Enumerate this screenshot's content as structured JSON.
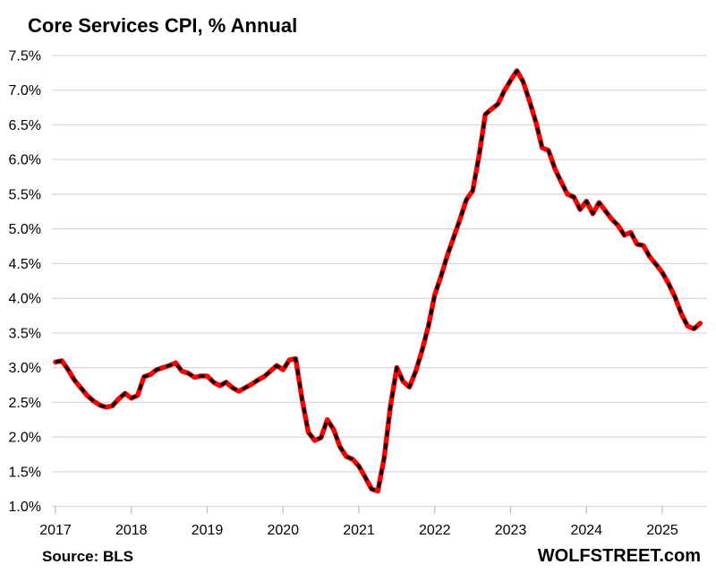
{
  "header": {
    "title": "Core Services CPI, % Annual"
  },
  "footer": {
    "source_label": "Source: BLS",
    "branding": "WOLFSTREET.com"
  },
  "chart_data": {
    "type": "line",
    "title": "Core Services CPI, % Annual",
    "xlabel": "",
    "ylabel": "",
    "frequency": "monthly",
    "start_month": "2017-01",
    "end_month": "2025-07",
    "x_tick_labels": [
      "2017",
      "2018",
      "2019",
      "2020",
      "2021",
      "2022",
      "2023",
      "2024",
      "2025"
    ],
    "y_tick_labels": [
      "1.0%",
      "1.5%",
      "2.0%",
      "2.5%",
      "3.0%",
      "3.5%",
      "4.0%",
      "4.5%",
      "5.0%",
      "5.5%",
      "6.0%",
      "6.5%",
      "7.0%",
      "7.5%"
    ],
    "y_ticks": [
      1.0,
      1.5,
      2.0,
      2.5,
      3.0,
      3.5,
      4.0,
      4.5,
      5.0,
      5.5,
      6.0,
      6.5,
      7.0,
      7.5
    ],
    "ylim": [
      1.0,
      7.5
    ],
    "grid": true,
    "legend": "none",
    "line_style": "thick red with black dash overlay",
    "colors": {
      "line": "#FF0000",
      "dash_overlay": "#000000",
      "gridline": "#D9D9D9",
      "axis_tick": "#BFBFBF",
      "text": "#000000",
      "background": "#FFFFFF"
    },
    "series": [
      {
        "name": "Core Services CPI, % change year-over-year",
        "values": [
          3.08,
          3.1,
          2.97,
          2.82,
          2.71,
          2.6,
          2.52,
          2.46,
          2.43,
          2.45,
          2.55,
          2.63,
          2.56,
          2.6,
          2.87,
          2.9,
          2.97,
          3.0,
          3.03,
          3.07,
          2.95,
          2.92,
          2.86,
          2.88,
          2.88,
          2.79,
          2.74,
          2.79,
          2.71,
          2.66,
          2.71,
          2.76,
          2.82,
          2.87,
          2.95,
          3.03,
          2.97,
          3.11,
          3.13,
          2.55,
          2.07,
          1.95,
          1.99,
          2.25,
          2.11,
          1.86,
          1.72,
          1.68,
          1.58,
          1.42,
          1.25,
          1.22,
          1.7,
          2.45,
          3.0,
          2.8,
          2.72,
          2.95,
          3.25,
          3.6,
          4.05,
          4.32,
          4.62,
          4.88,
          5.14,
          5.42,
          5.55,
          6.05,
          6.65,
          6.73,
          6.8,
          6.99,
          7.14,
          7.28,
          7.12,
          6.84,
          6.54,
          6.17,
          6.13,
          5.87,
          5.68,
          5.5,
          5.46,
          5.28,
          5.4,
          5.22,
          5.38,
          5.26,
          5.14,
          5.05,
          4.91,
          4.95,
          4.78,
          4.76,
          4.6,
          4.49,
          4.37,
          4.21,
          4.02,
          3.78,
          3.6,
          3.56,
          3.64
        ]
      }
    ]
  }
}
